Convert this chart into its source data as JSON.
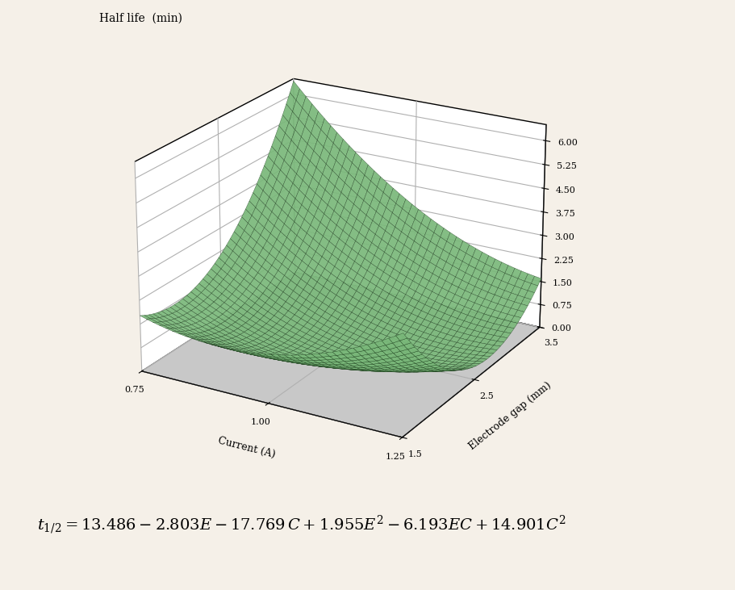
{
  "title": "Half life  (min)",
  "xlabel": "Current (A)",
  "ylabel": "Electrode gap (mm)",
  "coeff": {
    "intercept": 13.486,
    "E": -2.803,
    "C": -17.769,
    "E2": 1.955,
    "EC": -6.193,
    "C2": 14.901
  },
  "C_range": [
    0.75,
    1.25
  ],
  "E_range": [
    1.5,
    3.5
  ],
  "z_ticks": [
    0.0,
    0.75,
    1.5,
    2.25,
    3.0,
    3.75,
    4.5,
    5.25,
    6.0
  ],
  "C_ticks": [
    0.75,
    1.0,
    1.25
  ],
  "E_ticks": [
    1.5,
    2.5,
    3.5
  ],
  "surface_facecolor": "#7ab87a",
  "surface_edgecolor": "#1a3a1a",
  "surface_alpha": 0.92,
  "pane_side_color": "#c8c8c8",
  "pane_back_color": "#ffffff",
  "figure_bg": "#f5f0e8",
  "elev": 22,
  "azim": -60,
  "n_grid": 40
}
